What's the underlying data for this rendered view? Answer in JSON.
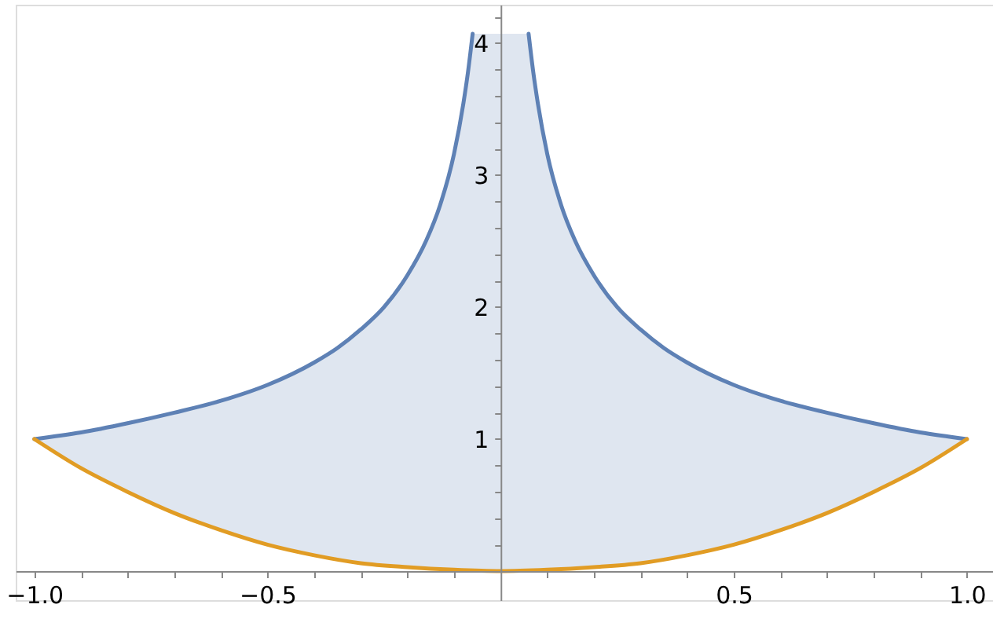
{
  "chart_data": {
    "type": "line",
    "xlim": [
      -1.04,
      1.056
    ],
    "ylim": [
      -0.22,
      4.29
    ],
    "xticks": [
      {
        "value": -1.0,
        "label": "−1.0"
      },
      {
        "value": -0.9,
        "label": null
      },
      {
        "value": -0.8,
        "label": null
      },
      {
        "value": -0.7,
        "label": null
      },
      {
        "value": -0.6,
        "label": null
      },
      {
        "value": -0.5,
        "label": "−0.5"
      },
      {
        "value": -0.4,
        "label": null
      },
      {
        "value": -0.3,
        "label": null
      },
      {
        "value": -0.2,
        "label": null
      },
      {
        "value": -0.1,
        "label": null
      },
      {
        "value": 0.1,
        "label": null
      },
      {
        "value": 0.2,
        "label": null
      },
      {
        "value": 0.3,
        "label": null
      },
      {
        "value": 0.4,
        "label": null
      },
      {
        "value": 0.5,
        "label": "0.5"
      },
      {
        "value": 0.6,
        "label": null
      },
      {
        "value": 0.7,
        "label": null
      },
      {
        "value": 0.8,
        "label": null
      },
      {
        "value": 0.9,
        "label": null
      },
      {
        "value": 1.0,
        "label": "1.0"
      }
    ],
    "yticks": [
      {
        "value": 0.2,
        "label": null
      },
      {
        "value": 0.4,
        "label": null
      },
      {
        "value": 0.6,
        "label": null
      },
      {
        "value": 0.8,
        "label": null
      },
      1,
      {
        "value": 1.2,
        "label": null
      },
      {
        "value": 1.4,
        "label": null
      },
      {
        "value": 1.6,
        "label": null
      },
      {
        "value": 1.8,
        "label": null
      },
      2,
      {
        "value": 2.2,
        "label": null
      },
      {
        "value": 2.4,
        "label": null
      },
      {
        "value": 2.6,
        "label": null
      },
      {
        "value": 2.8,
        "label": null
      },
      3,
      {
        "value": 3.2,
        "label": null
      },
      {
        "value": 3.4,
        "label": null
      },
      {
        "value": 3.6,
        "label": null
      },
      {
        "value": 3.8,
        "label": null
      },
      4,
      {
        "value": 4.2,
        "label": null
      }
    ],
    "grid": false,
    "marker": "none",
    "line_style": "solid",
    "series": [
      {
        "color": "#5e81b5",
        "x": [
          -1,
          -0.9,
          -0.8,
          -0.7,
          -0.6,
          -0.5,
          -0.4,
          -0.35,
          -0.3,
          -0.25,
          -0.2,
          -0.16,
          -0.13,
          -0.1,
          -0.08,
          -0.07,
          -0.06,
          0,
          0.06,
          0.07,
          0.08,
          0.1,
          0.13,
          0.16,
          0.2,
          0.25,
          0.3,
          0.35,
          0.4,
          0.5,
          0.6,
          0.7,
          0.8,
          0.9,
          1
        ],
        "values": [
          1,
          1.05,
          1.12,
          1.2,
          1.29,
          1.41,
          1.58,
          1.69,
          1.83,
          2,
          2.24,
          2.5,
          2.77,
          3.16,
          3.54,
          3.78,
          4.07,
          null,
          4.07,
          3.78,
          3.54,
          3.16,
          2.77,
          2.5,
          2.24,
          2,
          1.83,
          1.69,
          1.58,
          1.41,
          1.29,
          1.2,
          1.12,
          1.05,
          1
        ],
        "upper": [
          1,
          1.05,
          1.12,
          1.2,
          1.29,
          1.41,
          1.58,
          1.69,
          1.83,
          2,
          2.24,
          2.5,
          2.77,
          3.16,
          3.54,
          3.78,
          4.07,
          4.07,
          4.07,
          3.78,
          3.54,
          3.16,
          2.77,
          2.5,
          2.24,
          2,
          1.83,
          1.69,
          1.58,
          1.41,
          1.29,
          1.2,
          1.12,
          1.05,
          1
        ],
        "lower": [
          1,
          0.78,
          0.6,
          0.44,
          0.31,
          0.2,
          0.12,
          0.09,
          0.06,
          0.04,
          0.03,
          0.01,
          0.01,
          0.01,
          0,
          0,
          0,
          0,
          0,
          0,
          0,
          0.01,
          0.01,
          0.01,
          0.03,
          0.04,
          0.06,
          0.09,
          0.12,
          0.2,
          0.31,
          0.44,
          0.6,
          0.78,
          1
        ]
      },
      {
        "color": "#e19c24",
        "x": [
          -1,
          -0.9,
          -0.8,
          -0.7,
          -0.6,
          -0.5,
          -0.4,
          -0.3,
          -0.2,
          -0.1,
          0,
          0.1,
          0.2,
          0.3,
          0.4,
          0.5,
          0.6,
          0.7,
          0.8,
          0.9,
          1
        ],
        "values": [
          1,
          0.78,
          0.6,
          0.44,
          0.31,
          0.2,
          0.12,
          0.06,
          0.03,
          0.01,
          0,
          0.01,
          0.03,
          0.06,
          0.12,
          0.2,
          0.31,
          0.44,
          0.6,
          0.78,
          1
        ]
      }
    ]
  }
}
